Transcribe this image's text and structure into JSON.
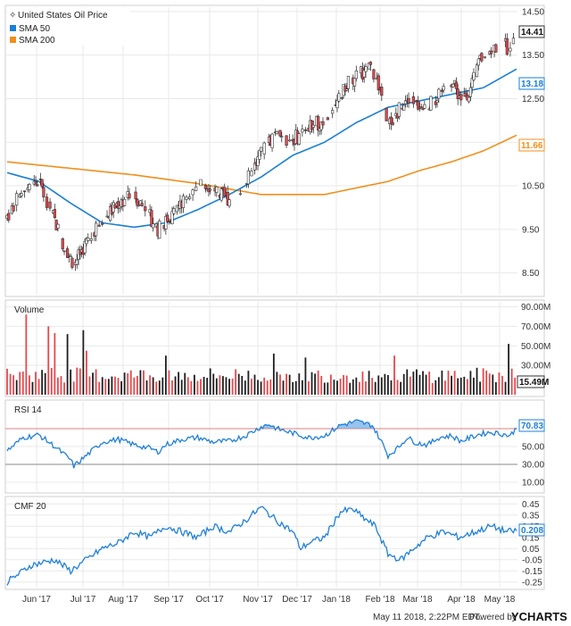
{
  "chart_data": {
    "type": "candlestick",
    "title": "United States Oil Price",
    "legend": [
      "United States Oil Price",
      "SMA 50",
      "SMA 200"
    ],
    "months": [
      "Jun '17",
      "Jul '17",
      "Aug '17",
      "Sep '17",
      "Oct '17",
      "Nov '17",
      "Dec '17",
      "Jan '18",
      "Feb '18",
      "Mar '18",
      "Apr '18",
      "May '18"
    ],
    "price_pane": {
      "yticks": [
        "8.50",
        "9.50",
        "10.50",
        "11.50",
        "12.50",
        "13.50",
        "14.50"
      ],
      "ylim": [
        8.0,
        14.6
      ],
      "last_price": "14.41",
      "sma50_last": "13.18",
      "sma200_last": "11.66",
      "close_anchors": [
        [
          0,
          9.8
        ],
        [
          10,
          10.4
        ],
        [
          20,
          10.6
        ],
        [
          27,
          10.0
        ],
        [
          35,
          9.2
        ],
        [
          42,
          8.7
        ],
        [
          50,
          9.2
        ],
        [
          60,
          9.7
        ],
        [
          70,
          10.1
        ],
        [
          80,
          10.3
        ],
        [
          88,
          9.9
        ],
        [
          95,
          9.5
        ],
        [
          103,
          9.8
        ],
        [
          110,
          10.1
        ],
        [
          118,
          10.4
        ],
        [
          125,
          10.6
        ],
        [
          133,
          10.3
        ],
        [
          140,
          10.2
        ],
        [
          148,
          10.4
        ],
        [
          155,
          10.9
        ],
        [
          163,
          11.4
        ],
        [
          170,
          11.8
        ],
        [
          178,
          11.5
        ],
        [
          185,
          11.7
        ],
        [
          193,
          11.9
        ],
        [
          200,
          12.0
        ],
        [
          208,
          12.4
        ],
        [
          215,
          12.9
        ],
        [
          223,
          13.1
        ],
        [
          230,
          13.2
        ],
        [
          236,
          12.6
        ],
        [
          240,
          11.9
        ],
        [
          246,
          12.2
        ],
        [
          252,
          12.6
        ],
        [
          258,
          12.4
        ],
        [
          265,
          12.3
        ],
        [
          272,
          12.6
        ],
        [
          280,
          12.9
        ],
        [
          286,
          12.5
        ],
        [
          292,
          12.7
        ],
        [
          298,
          13.4
        ],
        [
          305,
          13.6
        ],
        [
          312,
          13.8
        ],
        [
          317,
          13.6
        ],
        [
          321,
          14.4
        ]
      ],
      "sma50_anchors": [
        [
          0,
          10.8
        ],
        [
          20,
          10.6
        ],
        [
          40,
          10.1
        ],
        [
          60,
          9.65
        ],
        [
          80,
          9.55
        ],
        [
          100,
          9.65
        ],
        [
          120,
          9.95
        ],
        [
          140,
          10.3
        ],
        [
          160,
          10.7
        ],
        [
          180,
          11.2
        ],
        [
          200,
          11.5
        ],
        [
          220,
          11.95
        ],
        [
          240,
          12.3
        ],
        [
          260,
          12.45
        ],
        [
          280,
          12.6
        ],
        [
          300,
          12.75
        ],
        [
          321,
          13.18
        ]
      ],
      "sma200_anchors": [
        [
          0,
          11.05
        ],
        [
          40,
          10.9
        ],
        [
          80,
          10.75
        ],
        [
          120,
          10.55
        ],
        [
          160,
          10.3
        ],
        [
          200,
          10.3
        ],
        [
          220,
          10.45
        ],
        [
          240,
          10.6
        ],
        [
          260,
          10.85
        ],
        [
          280,
          11.05
        ],
        [
          300,
          11.3
        ],
        [
          321,
          11.66
        ]
      ]
    },
    "volume_pane": {
      "title": "Volume",
      "yticks": [
        "30.00M",
        "50.00M",
        "70.00M",
        "90.00M"
      ],
      "ylim": [
        0,
        95
      ],
      "last_value": "15.49M",
      "spikes": [
        [
          13,
          82
        ],
        [
          26,
          70
        ],
        [
          31,
          63
        ],
        [
          38,
          62
        ],
        [
          48,
          66
        ],
        [
          50,
          45
        ],
        [
          100,
          40
        ],
        [
          168,
          42
        ],
        [
          188,
          38
        ],
        [
          245,
          40
        ],
        [
          316,
          52
        ]
      ]
    },
    "rsi_pane": {
      "title": "RSI 14",
      "yticks": [
        "10.00",
        "30.00",
        "50.00",
        "70.00"
      ],
      "ylim": [
        0,
        100
      ],
      "overbought": 70,
      "oversold": 30,
      "last_value": "70.83",
      "anchors": [
        [
          0,
          45
        ],
        [
          10,
          60
        ],
        [
          20,
          63
        ],
        [
          30,
          50
        ],
        [
          40,
          35
        ],
        [
          42,
          28
        ],
        [
          50,
          40
        ],
        [
          60,
          55
        ],
        [
          70,
          58
        ],
        [
          80,
          52
        ],
        [
          90,
          48
        ],
        [
          95,
          44
        ],
        [
          100,
          52
        ],
        [
          110,
          58
        ],
        [
          120,
          60
        ],
        [
          130,
          55
        ],
        [
          140,
          56
        ],
        [
          150,
          62
        ],
        [
          160,
          72
        ],
        [
          165,
          75
        ],
        [
          170,
          70
        ],
        [
          180,
          65
        ],
        [
          190,
          60
        ],
        [
          200,
          62
        ],
        [
          210,
          74
        ],
        [
          220,
          78
        ],
        [
          230,
          74
        ],
        [
          236,
          55
        ],
        [
          240,
          40
        ],
        [
          246,
          48
        ],
        [
          252,
          60
        ],
        [
          258,
          54
        ],
        [
          265,
          52
        ],
        [
          272,
          60
        ],
        [
          280,
          62
        ],
        [
          286,
          56
        ],
        [
          292,
          60
        ],
        [
          298,
          64
        ],
        [
          305,
          66
        ],
        [
          312,
          64
        ],
        [
          317,
          62
        ],
        [
          321,
          71
        ]
      ]
    },
    "cmf_pane": {
      "title": "CMF 20",
      "yticks": [
        "-0.25",
        "-0.15",
        "-0.05",
        "0.05",
        "0.15",
        "0.25",
        "0.35",
        "0.45"
      ],
      "ylim": [
        -0.3,
        0.5
      ],
      "last_value": "0.208",
      "anchors": [
        [
          0,
          -0.25
        ],
        [
          15,
          -0.1
        ],
        [
          30,
          -0.05
        ],
        [
          40,
          -0.15
        ],
        [
          50,
          -0.05
        ],
        [
          60,
          0.05
        ],
        [
          70,
          0.1
        ],
        [
          80,
          0.2
        ],
        [
          90,
          0.15
        ],
        [
          100,
          0.25
        ],
        [
          110,
          0.2
        ],
        [
          120,
          0.15
        ],
        [
          130,
          0.25
        ],
        [
          140,
          0.2
        ],
        [
          150,
          0.3
        ],
        [
          160,
          0.42
        ],
        [
          170,
          0.3
        ],
        [
          180,
          0.2
        ],
        [
          185,
          0.05
        ],
        [
          190,
          0.1
        ],
        [
          200,
          0.15
        ],
        [
          210,
          0.38
        ],
        [
          218,
          0.4
        ],
        [
          225,
          0.32
        ],
        [
          232,
          0.25
        ],
        [
          240,
          0.0
        ],
        [
          248,
          -0.05
        ],
        [
          256,
          0.05
        ],
        [
          265,
          0.15
        ],
        [
          275,
          0.2
        ],
        [
          285,
          0.15
        ],
        [
          295,
          0.2
        ],
        [
          305,
          0.25
        ],
        [
          315,
          0.2
        ],
        [
          321,
          0.21
        ]
      ]
    }
  },
  "footer": {
    "date_text": "May 11 2018, 2:22PM EDT.",
    "powered_by": "Powered by",
    "brand": "YCHARTS"
  },
  "colors": {
    "up": "#ffffff",
    "down": "#e8474c",
    "candle_outline": "#333333",
    "sma50": "#1a7fd6",
    "sma200": "#f18f1c",
    "rsi_line": "#2080d6",
    "rsi_fill": "#6aaae6",
    "cmf_line": "#2080d6",
    "volume_up": "#1e1e1e",
    "volume_down": "#e8474c",
    "overbought": "#e08080",
    "grid": "#e9e9e9"
  }
}
